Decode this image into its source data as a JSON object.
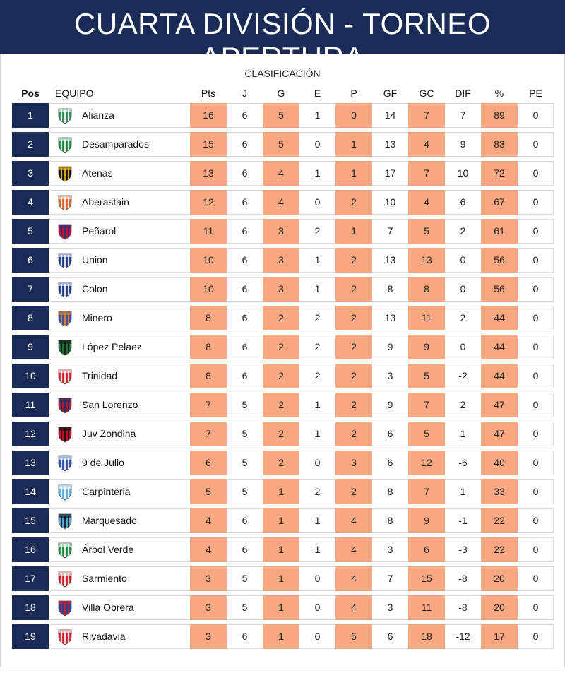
{
  "header": {
    "title": "CUARTA DIVISIÓN - TORNEO APERTURA"
  },
  "table": {
    "subtitle": "CLASIFICACIÓN",
    "columns": {
      "pos": "Pos",
      "team": "EQUIPO",
      "pts": "Pts",
      "j": "J",
      "g": "G",
      "e": "E",
      "p": "P",
      "gf": "GF",
      "gc": "GC",
      "dif": "DIF",
      "pct": "%",
      "pe": "PE"
    },
    "highlight_color": "#f7a880",
    "position_color": "#1a2b55",
    "rows": [
      {
        "pos": "1",
        "team": "Alianza",
        "crest": "alianza-crest-icon",
        "pts": "16",
        "j": "6",
        "g": "5",
        "e": "1",
        "p": "0",
        "gf": "14",
        "gc": "7",
        "dif": "7",
        "pct": "89",
        "pe": "0",
        "crest_colors": [
          "#2e8b57",
          "#ffffff"
        ]
      },
      {
        "pos": "2",
        "team": "Desamparados",
        "crest": "desamparados-crest-icon",
        "pts": "15",
        "j": "6",
        "g": "5",
        "e": "0",
        "p": "1",
        "gf": "13",
        "gc": "4",
        "dif": "9",
        "pct": "83",
        "pe": "0",
        "crest_colors": [
          "#1e8a45",
          "#ffffff"
        ]
      },
      {
        "pos": "3",
        "team": "Atenas",
        "crest": "atenas-crest-icon",
        "pts": "13",
        "j": "6",
        "g": "4",
        "e": "1",
        "p": "1",
        "gf": "17",
        "gc": "7",
        "dif": "10",
        "pct": "72",
        "pe": "0",
        "crest_colors": [
          "#111111",
          "#f2c500"
        ]
      },
      {
        "pos": "4",
        "team": "Aberastain",
        "crest": "aberastain-crest-icon",
        "pts": "12",
        "j": "6",
        "g": "4",
        "e": "0",
        "p": "2",
        "gf": "10",
        "gc": "4",
        "dif": "6",
        "pct": "67",
        "pe": "0",
        "crest_colors": [
          "#e0642a",
          "#ffffff"
        ]
      },
      {
        "pos": "5",
        "team": "Peñarol",
        "crest": "penarol-crest-icon",
        "pts": "11",
        "j": "6",
        "g": "3",
        "e": "2",
        "p": "1",
        "gf": "7",
        "gc": "5",
        "dif": "2",
        "pct": "61",
        "pe": "0",
        "crest_colors": [
          "#c8102e",
          "#1a3a8a"
        ]
      },
      {
        "pos": "6",
        "team": "Union",
        "crest": "union-crest-icon",
        "pts": "10",
        "j": "6",
        "g": "3",
        "e": "1",
        "p": "2",
        "gf": "13",
        "gc": "13",
        "dif": "0",
        "pct": "56",
        "pe": "0",
        "crest_colors": [
          "#1a3a8a",
          "#ffffff"
        ]
      },
      {
        "pos": "7",
        "team": "Colon",
        "crest": "colon-crest-icon",
        "pts": "10",
        "j": "6",
        "g": "3",
        "e": "1",
        "p": "2",
        "gf": "8",
        "gc": "8",
        "dif": "0",
        "pct": "56",
        "pe": "0",
        "crest_colors": [
          "#1a3a8a",
          "#ffffff"
        ]
      },
      {
        "pos": "8",
        "team": "Minero",
        "crest": "minero-crest-icon",
        "pts": "8",
        "j": "6",
        "g": "2",
        "e": "2",
        "p": "2",
        "gf": "13",
        "gc": "11",
        "dif": "2",
        "pct": "44",
        "pe": "0",
        "crest_colors": [
          "#3a4fa0",
          "#e8892a"
        ]
      },
      {
        "pos": "9",
        "team": "López Pelaez",
        "crest": "lopez-pelaez-crest-icon",
        "pts": "8",
        "j": "6",
        "g": "2",
        "e": "2",
        "p": "2",
        "gf": "9",
        "gc": "9",
        "dif": "0",
        "pct": "44",
        "pe": "0",
        "crest_colors": [
          "#1e7a3a",
          "#111111"
        ]
      },
      {
        "pos": "10",
        "team": "Trinidad",
        "crest": "trinidad-crest-icon",
        "pts": "8",
        "j": "6",
        "g": "2",
        "e": "2",
        "p": "2",
        "gf": "3",
        "gc": "5",
        "dif": "-2",
        "pct": "44",
        "pe": "0",
        "crest_colors": [
          "#d42028",
          "#ffffff"
        ]
      },
      {
        "pos": "11",
        "team": "San Lorenzo",
        "crest": "san-lorenzo-crest-icon",
        "pts": "7",
        "j": "5",
        "g": "2",
        "e": "1",
        "p": "2",
        "gf": "9",
        "gc": "7",
        "dif": "2",
        "pct": "47",
        "pe": "0",
        "crest_colors": [
          "#b01e2e",
          "#1a2b6a"
        ]
      },
      {
        "pos": "12",
        "team": "Juv Zondina",
        "crest": "juv-zondina-crest-icon",
        "pts": "7",
        "j": "5",
        "g": "2",
        "e": "1",
        "p": "2",
        "gf": "6",
        "gc": "5",
        "dif": "1",
        "pct": "47",
        "pe": "0",
        "crest_colors": [
          "#c8102e",
          "#111111"
        ]
      },
      {
        "pos": "13",
        "team": "9 de Julio",
        "crest": "9-de-julio-crest-icon",
        "pts": "6",
        "j": "5",
        "g": "2",
        "e": "0",
        "p": "3",
        "gf": "6",
        "gc": "12",
        "dif": "-6",
        "pct": "40",
        "pe": "0",
        "crest_colors": [
          "#2a4fb0",
          "#ffffff"
        ]
      },
      {
        "pos": "14",
        "team": "Carpinteria",
        "crest": "carpinteria-crest-icon",
        "pts": "5",
        "j": "5",
        "g": "1",
        "e": "2",
        "p": "2",
        "gf": "8",
        "gc": "7",
        "dif": "1",
        "pct": "33",
        "pe": "0",
        "crest_colors": [
          "#5aaede",
          "#ffffff"
        ]
      },
      {
        "pos": "15",
        "team": "Marquesado",
        "crest": "marquesado-crest-icon",
        "pts": "4",
        "j": "6",
        "g": "1",
        "e": "1",
        "p": "4",
        "gf": "8",
        "gc": "9",
        "dif": "-1",
        "pct": "22",
        "pe": "0",
        "crest_colors": [
          "#5aaede",
          "#111111"
        ]
      },
      {
        "pos": "16",
        "team": "Árbol Verde",
        "crest": "arbol-verde-crest-icon",
        "pts": "4",
        "j": "6",
        "g": "1",
        "e": "1",
        "p": "4",
        "gf": "3",
        "gc": "6",
        "dif": "-3",
        "pct": "22",
        "pe": "0",
        "crest_colors": [
          "#1e8a45",
          "#ffffff"
        ]
      },
      {
        "pos": "17",
        "team": "Sarmiento",
        "crest": "sarmiento-crest-icon",
        "pts": "3",
        "j": "5",
        "g": "1",
        "e": "0",
        "p": "4",
        "gf": "7",
        "gc": "15",
        "dif": "-8",
        "pct": "20",
        "pe": "0",
        "crest_colors": [
          "#d42028",
          "#ffffff"
        ]
      },
      {
        "pos": "18",
        "team": "Villa Obrera",
        "crest": "villa-obrera-crest-icon",
        "pts": "3",
        "j": "5",
        "g": "1",
        "e": "0",
        "p": "4",
        "gf": "3",
        "gc": "11",
        "dif": "-8",
        "pct": "20",
        "pe": "0",
        "crest_colors": [
          "#2a3fa0",
          "#d42028"
        ]
      },
      {
        "pos": "19",
        "team": "Rivadavia",
        "crest": "rivadavia-crest-icon",
        "pts": "3",
        "j": "6",
        "g": "1",
        "e": "0",
        "p": "5",
        "gf": "6",
        "gc": "18",
        "dif": "-12",
        "pct": "17",
        "pe": "0",
        "crest_colors": [
          "#d42028",
          "#ffffff"
        ]
      }
    ]
  }
}
